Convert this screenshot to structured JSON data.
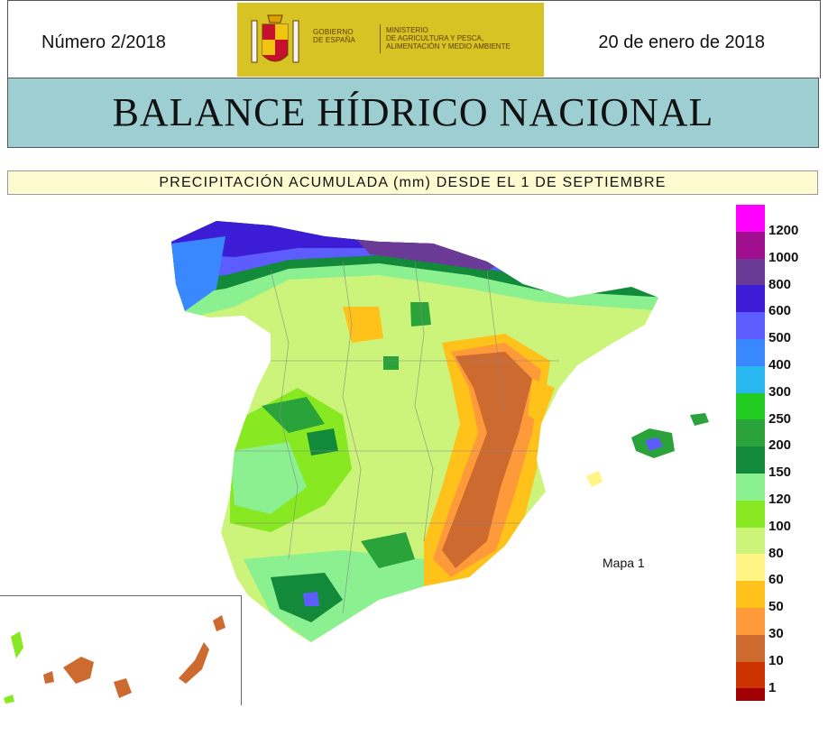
{
  "header": {
    "issue": "Número 2/2018",
    "date": "20 de enero de 2018",
    "logo": {
      "icon": "coat-of-arms-icon",
      "gobierno": [
        "GOBIERNO",
        "DE ESPAÑA"
      ],
      "ministerio": [
        "MINISTERIO",
        "DE AGRICULTURA Y PESCA,",
        "ALIMENTACIÓN Y MEDIO AMBIENTE"
      ]
    }
  },
  "title": "BALANCE HÍDRICO NACIONAL",
  "subtitle": "PRECIPITACIÓN ACUMULADA (mm) DESDE EL 1 DE SEPTIEMBRE",
  "map": {
    "label": "Mapa 1",
    "regions_depicted": [
      "Península Ibérica (España)",
      "Islas Baleares",
      "Islas Canarias"
    ]
  },
  "legend": {
    "items": [
      {
        "label": "1200",
        "color": "#ff00ff"
      },
      {
        "label": "1000",
        "color": "#a0108e"
      },
      {
        "label": "800",
        "color": "#6a3a96"
      },
      {
        "label": "600",
        "color": "#3c1cd4"
      },
      {
        "label": "500",
        "color": "#5c5cff"
      },
      {
        "label": "400",
        "color": "#3a88ff"
      },
      {
        "label": "300",
        "color": "#2ab8f0"
      },
      {
        "label": "250",
        "color": "#22cc22"
      },
      {
        "label": "200",
        "color": "#2aa43a"
      },
      {
        "label": "150",
        "color": "#128a3a"
      },
      {
        "label": "120",
        "color": "#8af090"
      },
      {
        "label": "100",
        "color": "#88e822"
      },
      {
        "label": "80",
        "color": "#ccf47a"
      },
      {
        "label": "60",
        "color": "#fff484"
      },
      {
        "label": "50",
        "color": "#ffc21a"
      },
      {
        "label": "30",
        "color": "#ff9a3a"
      },
      {
        "label": "10",
        "color": "#cc6a30"
      },
      {
        "label": "1",
        "color": "#cc3300"
      }
    ],
    "bottom_color": "#a00000"
  }
}
